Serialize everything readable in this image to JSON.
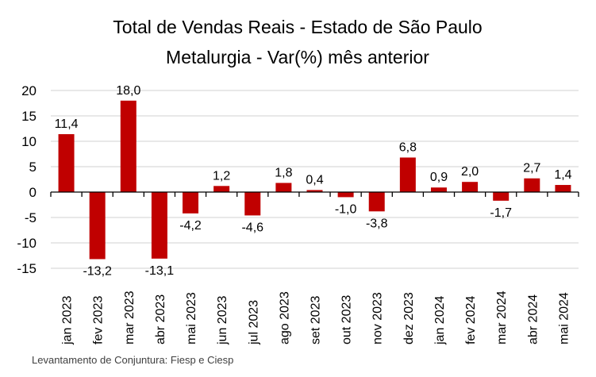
{
  "chart_data": {
    "type": "bar",
    "title": "Total de Vendas Reais - Estado de São Paulo",
    "subtitle": "Metalurgia - Var(%) mês anterior",
    "categories": [
      "jan 2023",
      "fev 2023",
      "mar 2023",
      "abr 2023",
      "mai 2023",
      "jun 2023",
      "jul 2023",
      "ago 2023",
      "set 2023",
      "out 2023",
      "nov 2023",
      "dez 2023",
      "jan 2024",
      "fev 2024",
      "mar 2024",
      "abr 2024",
      "mai 2024"
    ],
    "values": [
      11.4,
      -13.2,
      18.0,
      -13.1,
      -4.2,
      1.2,
      -4.6,
      1.8,
      0.4,
      -1.0,
      -3.8,
      6.8,
      0.9,
      2.0,
      -1.7,
      2.7,
      1.4
    ],
    "data_labels": [
      "11,4",
      "-13,2",
      "18,0",
      "-13,1",
      "-4,2",
      "1,2",
      "-4,6",
      "1,8",
      "0,4",
      "-1,0",
      "-3,8",
      "6,8",
      "0,9",
      "2,0",
      "-1,7",
      "2,7",
      "1,4"
    ],
    "yticks": [
      20,
      15,
      10,
      5,
      0,
      -5,
      -10,
      -15
    ],
    "ylim": [
      -15,
      20
    ],
    "xlabel": "",
    "ylabel": "",
    "grid": true,
    "bar_color": "#c00000",
    "source": "Levantamento de Conjuntura: Fiesp e Ciesp"
  }
}
